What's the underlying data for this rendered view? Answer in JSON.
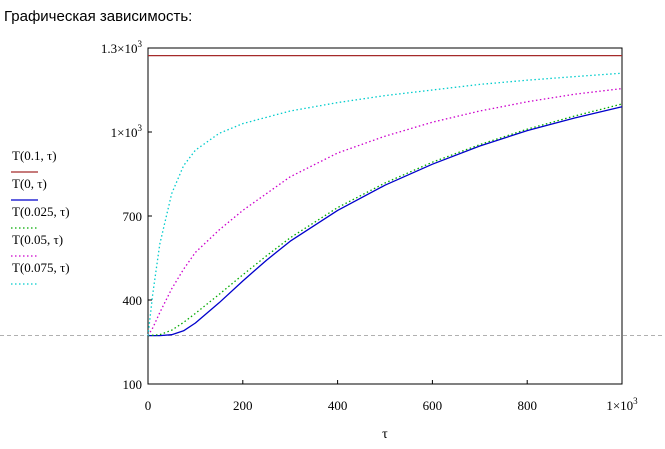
{
  "heading": "Графическая зависимость:",
  "chart_data": {
    "type": "line",
    "title": "",
    "xlabel": "τ",
    "ylabel": "",
    "xlim": [
      0,
      1000
    ],
    "ylim": [
      100,
      1300
    ],
    "x_ticks": [
      {
        "value": 0,
        "label": "0"
      },
      {
        "value": 200,
        "label": "200"
      },
      {
        "value": 400,
        "label": "400"
      },
      {
        "value": 600,
        "label": "600"
      },
      {
        "value": 800,
        "label": "800"
      },
      {
        "value": 1000,
        "label": "1×10",
        "exp": "3"
      }
    ],
    "y_ticks": [
      {
        "value": 100,
        "label": "100"
      },
      {
        "value": 400,
        "label": "400"
      },
      {
        "value": 700,
        "label": "700"
      },
      {
        "value": 1000,
        "label": "1×10",
        "exp": "3"
      },
      {
        "value": 1300,
        "label": "1.3×10",
        "exp": "3"
      }
    ],
    "reference_line_y": 273,
    "series": [
      {
        "name": "T(0.1, τ)",
        "color": "#a52a2a",
        "style": "solid",
        "x": [
          0,
          1000
        ],
        "y": [
          1273,
          1273
        ]
      },
      {
        "name": "T(0, τ)",
        "color": "#0000cc",
        "style": "solid",
        "x": [
          0,
          25,
          50,
          75,
          100,
          150,
          200,
          250,
          300,
          400,
          500,
          600,
          700,
          800,
          900,
          1000
        ],
        "y": [
          273,
          273,
          276,
          290,
          318,
          390,
          468,
          542,
          610,
          720,
          810,
          885,
          950,
          1005,
          1050,
          1090
        ]
      },
      {
        "name": "T(0.025, τ)",
        "color": "#00aa00",
        "style": "dotted",
        "x": [
          0,
          25,
          50,
          75,
          100,
          150,
          200,
          250,
          300,
          400,
          500,
          600,
          700,
          800,
          900,
          1000
        ],
        "y": [
          273,
          276,
          292,
          320,
          352,
          420,
          490,
          558,
          622,
          730,
          818,
          892,
          955,
          1010,
          1057,
          1100
        ]
      },
      {
        "name": "T(0.05, τ)",
        "color": "#cc00cc",
        "style": "dotted",
        "x": [
          0,
          10,
          25,
          50,
          75,
          100,
          150,
          200,
          300,
          400,
          500,
          600,
          700,
          800,
          900,
          1000
        ],
        "y": [
          273,
          300,
          355,
          440,
          510,
          570,
          650,
          720,
          840,
          925,
          985,
          1035,
          1075,
          1108,
          1135,
          1155
        ]
      },
      {
        "name": "T(0.075, τ)",
        "color": "#00cccc",
        "style": "dotted",
        "x": [
          0,
          10,
          25,
          50,
          75,
          100,
          150,
          200,
          300,
          400,
          500,
          600,
          700,
          800,
          900,
          1000
        ],
        "y": [
          273,
          420,
          600,
          780,
          880,
          935,
          995,
          1030,
          1075,
          1105,
          1130,
          1150,
          1170,
          1185,
          1198,
          1210
        ]
      }
    ]
  }
}
